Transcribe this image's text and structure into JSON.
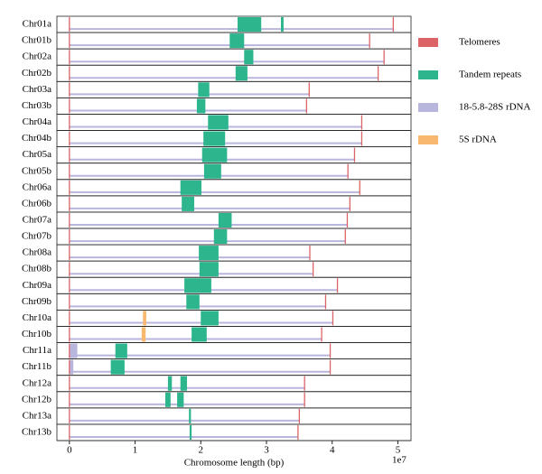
{
  "chart_data": {
    "type": "ideogram",
    "xlabel": "Chromosome length (bp)",
    "x_offset_label": "1e7",
    "xlim": [
      -1900000,
      52000000
    ],
    "xticks": [
      0,
      {
        "value": 10000000,
        "label": "1"
      },
      {
        "value": 20000000,
        "label": "2"
      },
      {
        "value": 30000000,
        "label": "3"
      },
      {
        "value": 40000000,
        "label": "4"
      },
      {
        "value": 50000000,
        "label": "5"
      }
    ],
    "categories": [
      "Chr01a",
      "Chr01b",
      "Chr02a",
      "Chr02b",
      "Chr03a",
      "Chr03b",
      "Chr04a",
      "Chr04b",
      "Chr05a",
      "Chr05b",
      "Chr06a",
      "Chr06b",
      "Chr07a",
      "Chr07b",
      "Chr08a",
      "Chr08b",
      "Chr09a",
      "Chr09b",
      "Chr10a",
      "Chr10b",
      "Chr11a",
      "Chr11b",
      "Chr12a",
      "Chr12b",
      "Chr13a",
      "Chr13b"
    ],
    "lengths": [
      49300000,
      45700000,
      47900000,
      47000000,
      36500000,
      36100000,
      44500000,
      44500000,
      43400000,
      42400000,
      44200000,
      42700000,
      42300000,
      42000000,
      36600000,
      37100000,
      40800000,
      39000000,
      40100000,
      38400000,
      39700000,
      39700000,
      35800000,
      35800000,
      35000000,
      34800000
    ],
    "chromosome_color": "#b8b6dc",
    "series": [
      {
        "name": "Telomeres",
        "color": "#dc6466",
        "kind": "point",
        "values": [
          [
            0,
            49300000
          ],
          [
            0,
            45700000
          ],
          [
            0,
            47900000
          ],
          [
            0,
            47000000
          ],
          [
            0,
            36500000
          ],
          [
            0,
            36100000
          ],
          [
            0,
            44500000
          ],
          [
            0,
            44500000
          ],
          [
            0,
            43400000
          ],
          [
            0,
            42400000
          ],
          [
            0,
            44200000
          ],
          [
            0,
            42700000
          ],
          [
            0,
            42300000
          ],
          [
            0,
            42000000
          ],
          [
            0,
            36600000
          ],
          [
            0,
            37100000
          ],
          [
            0,
            40800000
          ],
          [
            0,
            39000000
          ],
          [
            0,
            40100000
          ],
          [
            0,
            38400000
          ],
          [
            0,
            39700000
          ],
          [
            0,
            39700000
          ],
          [
            0,
            35800000
          ],
          [
            0,
            35800000
          ],
          [
            0,
            35000000
          ],
          [
            0,
            34800000
          ]
        ]
      },
      {
        "name": "Tandem repeats",
        "color": "#2db58d",
        "kind": "interval",
        "values": [
          [
            [
              25600000,
              29200000
            ],
            [
              32200000,
              32600000
            ]
          ],
          [
            [
              24400000,
              26600000
            ]
          ],
          [
            [
              26600000,
              28000000
            ]
          ],
          [
            [
              25300000,
              27100000
            ]
          ],
          [
            [
              19600000,
              21300000
            ]
          ],
          [
            [
              19400000,
              20700000
            ]
          ],
          [
            [
              21100000,
              24200000
            ]
          ],
          [
            [
              20400000,
              23700000
            ]
          ],
          [
            [
              20200000,
              24000000
            ]
          ],
          [
            [
              20500000,
              23100000
            ]
          ],
          [
            [
              16900000,
              20100000
            ]
          ],
          [
            [
              17100000,
              19000000
            ]
          ],
          [
            [
              22700000,
              24700000
            ]
          ],
          [
            [
              22000000,
              24000000
            ]
          ],
          [
            [
              19700000,
              22700000
            ]
          ],
          [
            [
              19800000,
              22700000
            ]
          ],
          [
            [
              17500000,
              21600000
            ]
          ],
          [
            [
              17800000,
              19800000
            ]
          ],
          [
            [
              20000000,
              22700000
            ]
          ],
          [
            [
              18600000,
              20900000
            ]
          ],
          [
            [
              7000000,
              8800000
            ]
          ],
          [
            [
              6300000,
              8400000
            ]
          ],
          [
            [
              15000000,
              15600000
            ],
            [
              16900000,
              17900000
            ]
          ],
          [
            [
              14600000,
              15400000
            ],
            [
              16400000,
              17400000
            ]
          ],
          [
            [
              18200000,
              18500000
            ]
          ],
          [
            [
              18300000,
              18600000
            ]
          ]
        ]
      },
      {
        "name": "18-5.8-28S rDNA",
        "color": "#b8b6dc",
        "kind": "interval",
        "values": [
          [],
          [],
          [],
          [],
          [],
          [],
          [],
          [],
          [],
          [],
          [],
          [],
          [],
          [],
          [],
          [],
          [],
          [],
          [],
          [],
          [
            [
              100000,
              1200000
            ]
          ],
          [
            [
              100000,
              600000
            ]
          ],
          [],
          [],
          [],
          []
        ]
      },
      {
        "name": "5S rDNA",
        "color": "#f8b870",
        "kind": "interval",
        "values": [
          [],
          [],
          [],
          [],
          [],
          [],
          [],
          [],
          [],
          [],
          [],
          [],
          [],
          [],
          [],
          [],
          [],
          [],
          [
            [
              11200000,
              11700000
            ]
          ],
          [
            [
              11000000,
              11600000
            ]
          ],
          [],
          [],
          [],
          [],
          [],
          []
        ]
      }
    ]
  }
}
